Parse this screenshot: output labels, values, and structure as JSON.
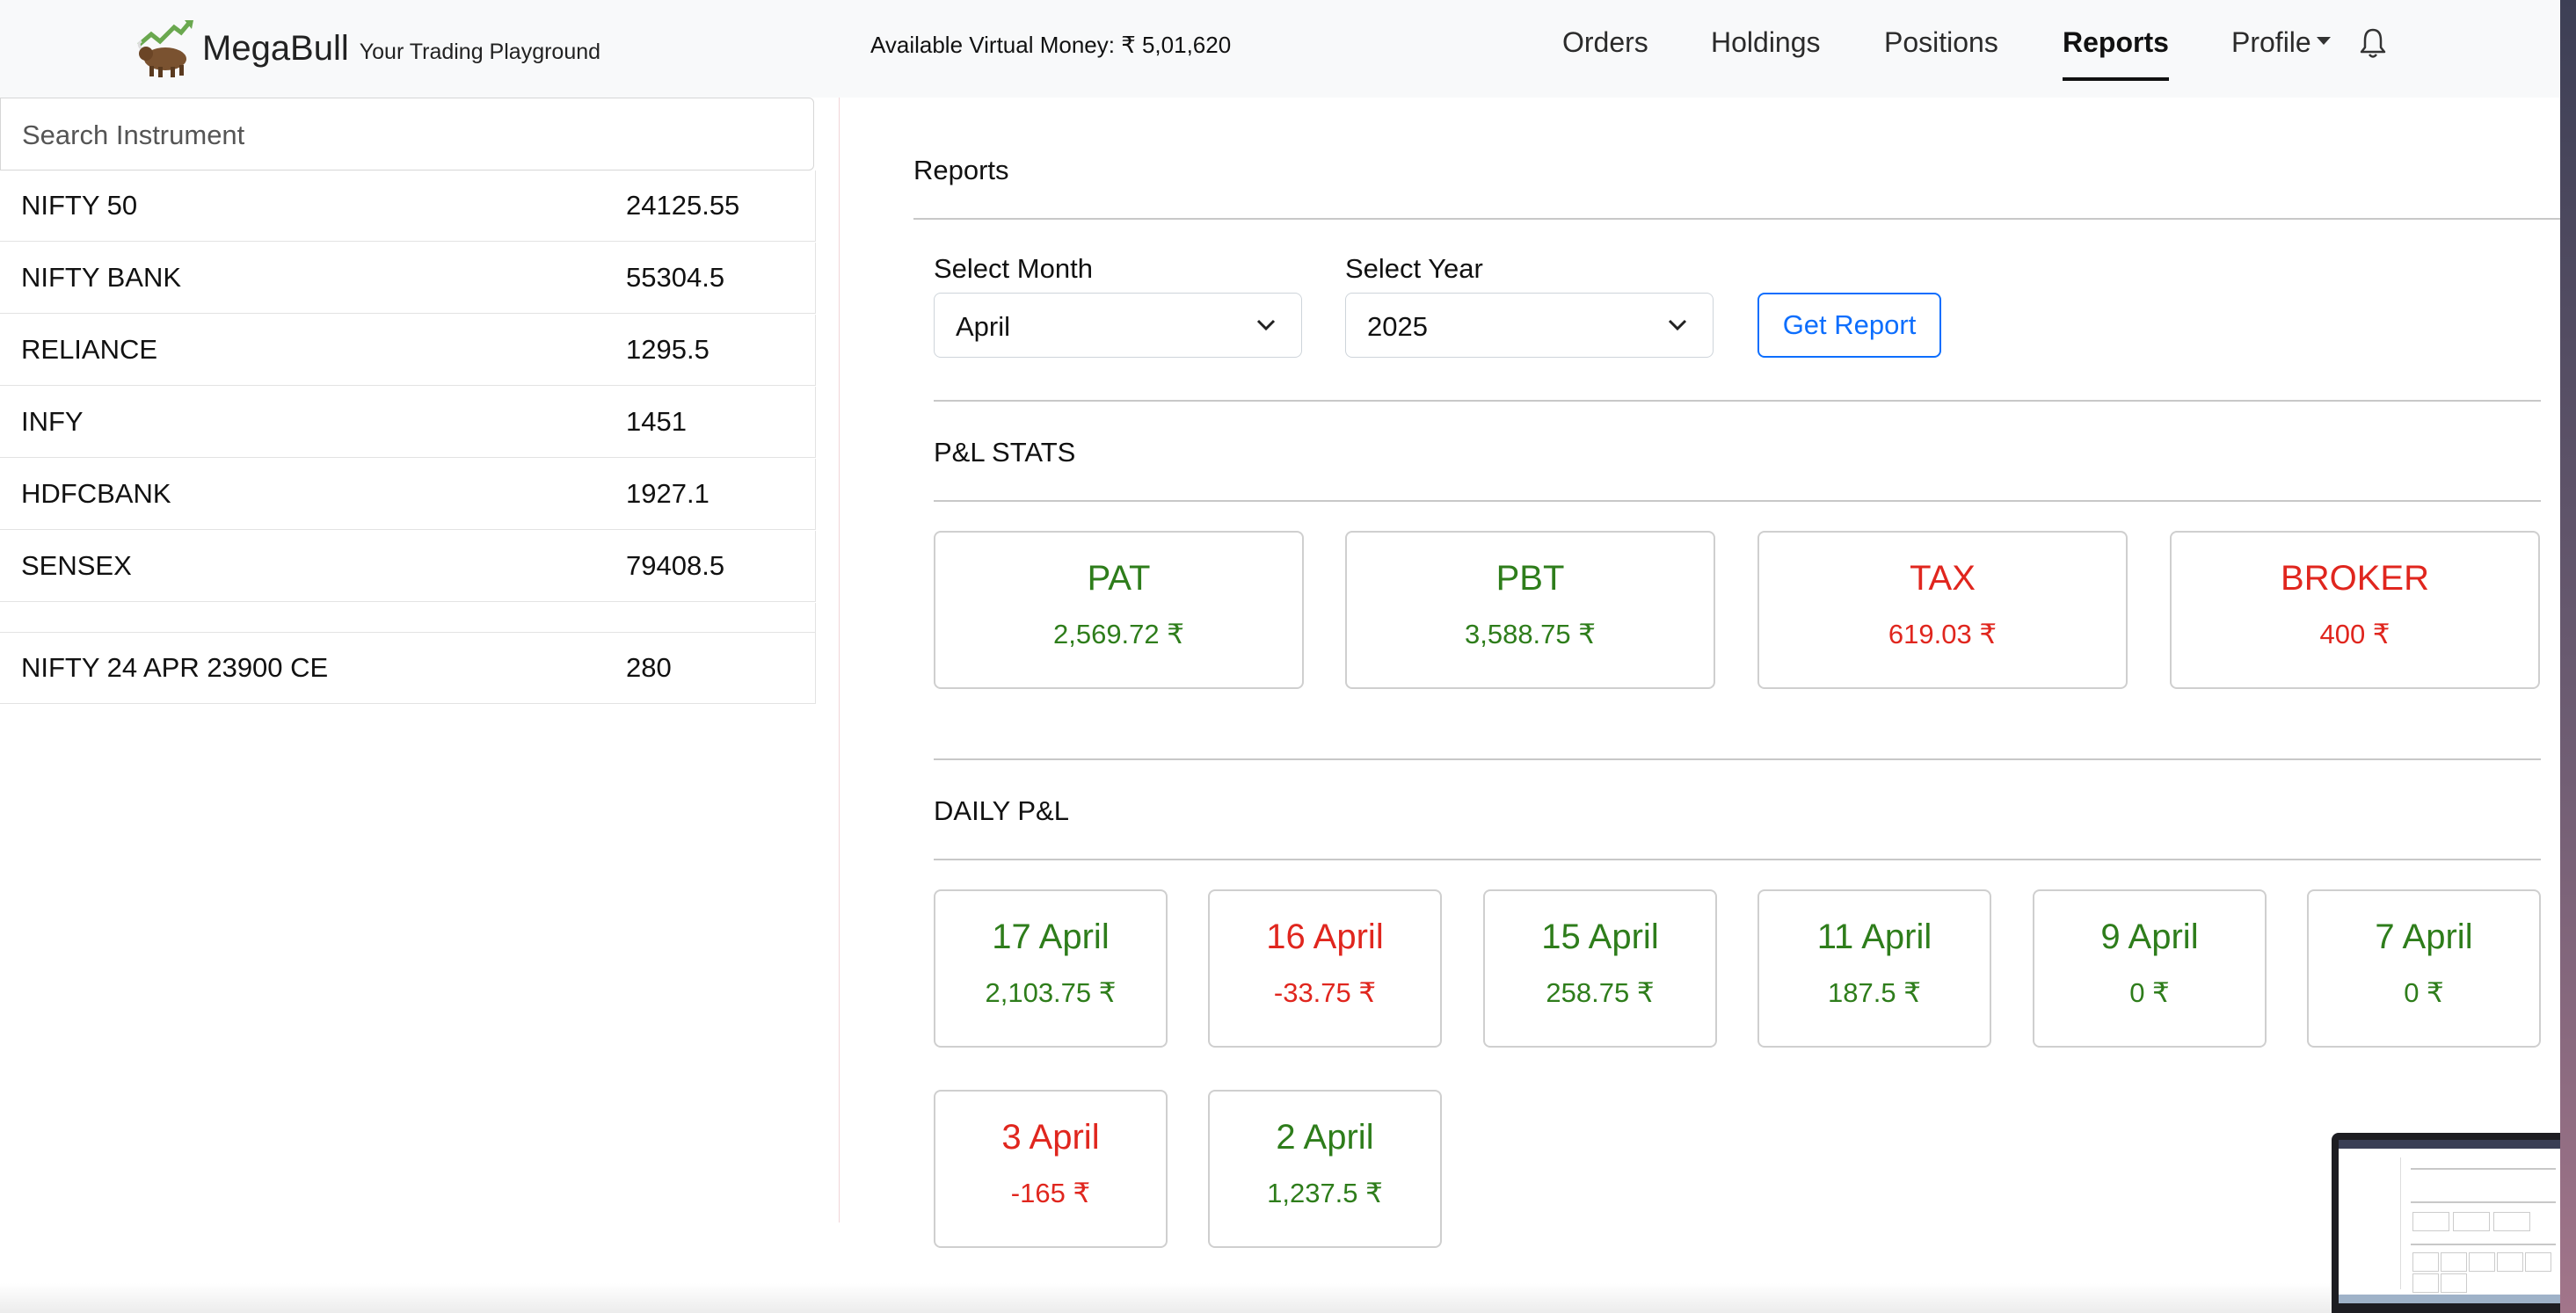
{
  "navbar": {
    "brand": "MegaBull",
    "tagline": "Your Trading Playground",
    "money": "Available Virtual Money: ₹ 5,01,620",
    "links": {
      "orders": "Orders",
      "holdings": "Holdings",
      "positions": "Positions",
      "reports": "Reports",
      "profile": "Profile"
    },
    "active": "Reports",
    "icons": [
      "bull-logo-icon",
      "bell-icon"
    ]
  },
  "sidebar": {
    "search_placeholder": "Search Instrument",
    "instruments": [
      {
        "name": "NIFTY 50",
        "value": "24125.55"
      },
      {
        "name": "NIFTY BANK",
        "value": "55304.5"
      },
      {
        "name": "RELIANCE",
        "value": "1295.5"
      },
      {
        "name": "INFY",
        "value": "1451"
      },
      {
        "name": "HDFCBANK",
        "value": "1927.1"
      },
      {
        "name": "SENSEX",
        "value": "79408.5"
      },
      {
        "name": "NIFTY 24 APR 23900 CE",
        "value": "280"
      }
    ]
  },
  "main": {
    "title": "Reports",
    "month_label": "Select Month",
    "month_value": "April",
    "year_label": "Select Year",
    "year_value": "2025",
    "get_report": "Get Report",
    "pl_stats_title": "P&L STATS",
    "stats": [
      {
        "title": "PAT",
        "value": "2,569.72 ₹",
        "color": "#2e7d1b"
      },
      {
        "title": "PBT",
        "value": "3,588.75 ₹",
        "color": "#2e7d1b"
      },
      {
        "title": "TAX",
        "value": "619.03 ₹",
        "color": "#e0261e"
      },
      {
        "title": "BROKER",
        "value": "400 ₹",
        "color": "#e0261e"
      }
    ],
    "daily_title": "DAILY P&L",
    "daily": [
      {
        "date": "17 April",
        "value": "2,103.75 ₹",
        "color": "#2e7d1b"
      },
      {
        "date": "16 April",
        "value": "-33.75 ₹",
        "color": "#e0261e"
      },
      {
        "date": "15 April",
        "value": "258.75 ₹",
        "color": "#2e7d1b"
      },
      {
        "date": "11 April",
        "value": "187.5 ₹",
        "color": "#2e7d1b"
      },
      {
        "date": "9 April",
        "value": "0 ₹",
        "color": "#2e7d1b"
      },
      {
        "date": "7 April",
        "value": "0 ₹",
        "color": "#2e7d1b"
      },
      {
        "date": "3 April",
        "value": "-165 ₹",
        "color": "#e0261e"
      },
      {
        "date": "2 April",
        "value": "1,237.5 ₹",
        "color": "#2e7d1b"
      }
    ]
  }
}
